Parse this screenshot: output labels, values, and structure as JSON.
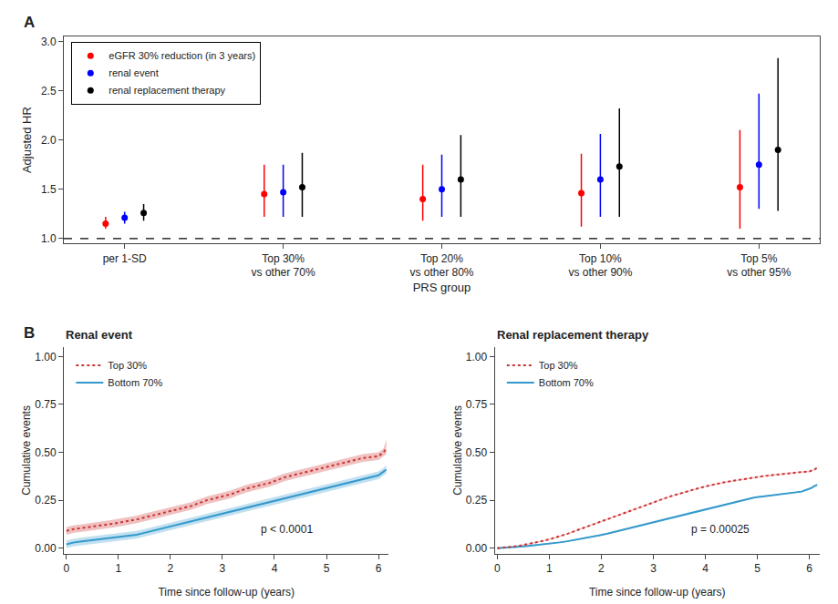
{
  "chart_data": [
    {
      "type": "scatter",
      "panel_label": "A",
      "xlabel": "PRS group",
      "ylabel": "Adjusted HR",
      "categories": [
        "per 1-SD",
        "Top 30%\nvs other 70%",
        "Top 20%\nvs other 80%",
        "Top 10%\nvs other 90%",
        "Top 5%\nvs other 95%"
      ],
      "series": [
        {
          "name": "eGFR 30% reduction (in 3 years)",
          "color": "#FF0000",
          "marker": "circle",
          "values": [
            1.15,
            1.45,
            1.4,
            1.46,
            1.52
          ],
          "ci_low": [
            1.1,
            1.22,
            1.18,
            1.12,
            1.1
          ],
          "ci_high": [
            1.22,
            1.75,
            1.75,
            1.86,
            2.1
          ]
        },
        {
          "name": "renal event",
          "color": "#0000FF",
          "marker": "circle",
          "values": [
            1.21,
            1.47,
            1.5,
            1.6,
            1.75
          ],
          "ci_low": [
            1.15,
            1.22,
            1.22,
            1.22,
            1.3
          ],
          "ci_high": [
            1.27,
            1.75,
            1.85,
            2.06,
            2.47
          ]
        },
        {
          "name": "renal replacement therapy",
          "color": "#000000",
          "marker": "circle",
          "values": [
            1.26,
            1.52,
            1.6,
            1.73,
            1.9
          ],
          "ci_low": [
            1.18,
            1.22,
            1.22,
            1.22,
            1.28
          ],
          "ci_high": [
            1.35,
            1.87,
            2.05,
            2.32,
            2.83
          ]
        }
      ],
      "reference_line": 1.0,
      "ylim": [
        0.95,
        3.05
      ],
      "yticks": [
        {
          "value": 1.0,
          "label": "1.0"
        },
        1.5,
        {
          "value": 2.0,
          "label": "2.0"
        },
        2.5,
        {
          "value": 3.0,
          "label": "3.0"
        }
      ],
      "legend": "upper left",
      "grid": false
    },
    {
      "type": "line",
      "panel_label": "B",
      "title": "Renal event",
      "xlabel": "Time since follow-up (years)",
      "ylabel": "Cumulative events",
      "annotations": [
        "p < 0.0001"
      ],
      "x": [
        0.0,
        0.15,
        0.3,
        0.45,
        0.6,
        0.75,
        0.9,
        1.05,
        1.2,
        1.35,
        1.5,
        1.65,
        1.8,
        1.95,
        2.1,
        2.25,
        2.4,
        2.55,
        2.7,
        2.85,
        3.0,
        3.15,
        3.3,
        3.45,
        3.6,
        3.75,
        3.9,
        4.05,
        4.2,
        4.35,
        4.5,
        4.65,
        4.8,
        4.95,
        5.1,
        5.25,
        5.4,
        5.55,
        5.7,
        5.85,
        6.0,
        6.05,
        6.1,
        6.15
      ],
      "series": [
        {
          "name": "Bottom 70%",
          "color": "#3399CC",
          "line_style": "solid",
          "values": [
            0.02,
            0.03,
            0.035,
            0.04,
            0.045,
            0.05,
            0.055,
            0.06,
            0.065,
            0.07,
            0.08,
            0.09,
            0.1,
            0.11,
            0.12,
            0.13,
            0.14,
            0.15,
            0.16,
            0.17,
            0.18,
            0.19,
            0.2,
            0.21,
            0.22,
            0.23,
            0.24,
            0.25,
            0.26,
            0.27,
            0.28,
            0.29,
            0.3,
            0.31,
            0.32,
            0.33,
            0.34,
            0.35,
            0.36,
            0.37,
            0.38,
            0.39,
            0.4,
            0.41
          ],
          "low": [
            0.0,
            0.01,
            0.015,
            0.02,
            0.025,
            0.03,
            0.035,
            0.04,
            0.045,
            0.05,
            0.06,
            0.07,
            0.08,
            0.09,
            0.1,
            0.11,
            0.12,
            0.13,
            0.14,
            0.15,
            0.16,
            0.17,
            0.18,
            0.19,
            0.2,
            0.21,
            0.22,
            0.23,
            0.24,
            0.25,
            0.26,
            0.27,
            0.28,
            0.29,
            0.3,
            0.31,
            0.32,
            0.33,
            0.34,
            0.35,
            0.36,
            0.37,
            0.38,
            0.39
          ],
          "high": [
            0.04,
            0.05,
            0.055,
            0.06,
            0.065,
            0.07,
            0.075,
            0.08,
            0.085,
            0.09,
            0.1,
            0.11,
            0.12,
            0.13,
            0.14,
            0.15,
            0.16,
            0.17,
            0.18,
            0.19,
            0.2,
            0.21,
            0.22,
            0.23,
            0.24,
            0.25,
            0.26,
            0.27,
            0.28,
            0.29,
            0.3,
            0.31,
            0.32,
            0.33,
            0.34,
            0.35,
            0.36,
            0.37,
            0.38,
            0.39,
            0.4,
            0.41,
            0.42,
            0.43
          ]
        },
        {
          "name": "Top 30%",
          "color": "#CC3333",
          "line_style": "dotted",
          "values": [
            0.09,
            0.1,
            0.105,
            0.11,
            0.115,
            0.12,
            0.128,
            0.135,
            0.142,
            0.15,
            0.16,
            0.17,
            0.18,
            0.19,
            0.2,
            0.21,
            0.22,
            0.235,
            0.25,
            0.26,
            0.27,
            0.28,
            0.295,
            0.31,
            0.32,
            0.33,
            0.34,
            0.355,
            0.37,
            0.38,
            0.39,
            0.4,
            0.41,
            0.42,
            0.43,
            0.44,
            0.45,
            0.46,
            0.47,
            0.475,
            0.48,
            0.49,
            0.5,
            0.52
          ],
          "low": [
            0.07,
            0.08,
            0.085,
            0.09,
            0.095,
            0.1,
            0.108,
            0.115,
            0.122,
            0.13,
            0.14,
            0.15,
            0.16,
            0.17,
            0.18,
            0.19,
            0.2,
            0.215,
            0.23,
            0.24,
            0.25,
            0.26,
            0.275,
            0.29,
            0.3,
            0.31,
            0.32,
            0.335,
            0.35,
            0.36,
            0.37,
            0.38,
            0.39,
            0.4,
            0.41,
            0.42,
            0.43,
            0.44,
            0.45,
            0.455,
            0.46,
            0.47,
            0.48,
            0.49
          ],
          "high": [
            0.11,
            0.12,
            0.125,
            0.13,
            0.135,
            0.14,
            0.148,
            0.155,
            0.162,
            0.17,
            0.18,
            0.19,
            0.2,
            0.21,
            0.22,
            0.23,
            0.24,
            0.255,
            0.27,
            0.28,
            0.29,
            0.3,
            0.315,
            0.33,
            0.34,
            0.35,
            0.36,
            0.375,
            0.39,
            0.4,
            0.41,
            0.42,
            0.43,
            0.44,
            0.45,
            0.46,
            0.47,
            0.48,
            0.49,
            0.495,
            0.5,
            0.51,
            0.52,
            0.57
          ]
        }
      ],
      "xlim": [
        -0.05,
        6.2
      ],
      "xticks": [
        0,
        1,
        2,
        3,
        4,
        5,
        6
      ],
      "ylim": [
        -0.03,
        1.05
      ],
      "yticks": [
        {
          "value": 0.0,
          "label": "0.00"
        },
        0.25,
        {
          "value": 0.5,
          "label": "0.50"
        },
        0.75,
        {
          "value": 1.0,
          "label": "1.00"
        }
      ],
      "legend": "upper left",
      "grid": false
    },
    {
      "type": "line",
      "title": "Renal replacement therapy",
      "xlabel": "Time since follow-up (years)",
      "ylabel": "Cumulative events",
      "annotations": [
        "p = 0.00025"
      ],
      "x": [
        0.0,
        0.15,
        0.3,
        0.45,
        0.6,
        0.75,
        0.9,
        1.05,
        1.2,
        1.35,
        1.5,
        1.65,
        1.8,
        1.95,
        2.1,
        2.25,
        2.4,
        2.55,
        2.7,
        2.85,
        3.0,
        3.15,
        3.3,
        3.45,
        3.6,
        3.75,
        3.9,
        4.05,
        4.2,
        4.35,
        4.5,
        4.65,
        4.8,
        4.95,
        5.1,
        5.25,
        5.4,
        5.55,
        5.7,
        5.85,
        6.0,
        6.05,
        6.1,
        6.15
      ],
      "series": [
        {
          "name": "Bottom 70%",
          "color": "#3399CC",
          "line_style": "solid",
          "values": [
            0.0,
            0.002,
            0.005,
            0.008,
            0.012,
            0.016,
            0.02,
            0.025,
            0.03,
            0.036,
            0.043,
            0.05,
            0.058,
            0.066,
            0.075,
            0.085,
            0.095,
            0.105,
            0.115,
            0.125,
            0.135,
            0.145,
            0.155,
            0.165,
            0.175,
            0.185,
            0.195,
            0.205,
            0.215,
            0.225,
            0.235,
            0.245,
            0.255,
            0.265,
            0.27,
            0.275,
            0.28,
            0.285,
            0.29,
            0.295,
            0.31,
            0.315,
            0.325,
            0.33
          ],
          "low": [
            0.0,
            0.0,
            0.003,
            0.006,
            0.009,
            0.013,
            0.017,
            0.022,
            0.027,
            0.033,
            0.04,
            0.047,
            0.055,
            0.063,
            0.072,
            0.082,
            0.092,
            0.102,
            0.112,
            0.122,
            0.132,
            0.142,
            0.152,
            0.162,
            0.172,
            0.182,
            0.192,
            0.202,
            0.212,
            0.222,
            0.232,
            0.242,
            0.252,
            0.262,
            0.267,
            0.272,
            0.277,
            0.282,
            0.287,
            0.292,
            0.307,
            0.312,
            0.322,
            0.327
          ],
          "high": [
            0.0,
            0.004,
            0.007,
            0.01,
            0.015,
            0.019,
            0.023,
            0.028,
            0.033,
            0.039,
            0.046,
            0.053,
            0.061,
            0.069,
            0.078,
            0.088,
            0.098,
            0.108,
            0.118,
            0.128,
            0.138,
            0.148,
            0.158,
            0.168,
            0.178,
            0.188,
            0.198,
            0.208,
            0.218,
            0.228,
            0.238,
            0.248,
            0.258,
            0.268,
            0.273,
            0.278,
            0.283,
            0.288,
            0.293,
            0.298,
            0.313,
            0.318,
            0.328,
            0.333
          ]
        },
        {
          "name": "Top 30%",
          "color": "#CC3333",
          "line_style": "dotted",
          "values": [
            0.0,
            0.003,
            0.008,
            0.014,
            0.022,
            0.03,
            0.039,
            0.05,
            0.062,
            0.075,
            0.09,
            0.105,
            0.12,
            0.135,
            0.15,
            0.165,
            0.18,
            0.195,
            0.21,
            0.225,
            0.24,
            0.255,
            0.268,
            0.28,
            0.292,
            0.305,
            0.315,
            0.325,
            0.335,
            0.343,
            0.35,
            0.357,
            0.363,
            0.37,
            0.375,
            0.38,
            0.385,
            0.39,
            0.394,
            0.397,
            0.4,
            0.405,
            0.41,
            0.42
          ],
          "low": [
            0.0,
            0.001,
            0.006,
            0.011,
            0.019,
            0.027,
            0.036,
            0.047,
            0.059,
            0.072,
            0.087,
            0.102,
            0.117,
            0.132,
            0.147,
            0.162,
            0.177,
            0.192,
            0.207,
            0.222,
            0.237,
            0.252,
            0.265,
            0.277,
            0.289,
            0.302,
            0.312,
            0.322,
            0.332,
            0.34,
            0.347,
            0.354,
            0.36,
            0.367,
            0.372,
            0.377,
            0.382,
            0.387,
            0.391,
            0.394,
            0.397,
            0.402,
            0.407,
            0.417
          ],
          "high": [
            0.0,
            0.005,
            0.01,
            0.017,
            0.025,
            0.033,
            0.042,
            0.053,
            0.065,
            0.078,
            0.093,
            0.108,
            0.123,
            0.138,
            0.153,
            0.168,
            0.183,
            0.198,
            0.213,
            0.228,
            0.243,
            0.258,
            0.271,
            0.283,
            0.295,
            0.308,
            0.318,
            0.328,
            0.338,
            0.346,
            0.353,
            0.36,
            0.366,
            0.373,
            0.378,
            0.383,
            0.388,
            0.393,
            0.397,
            0.4,
            0.403,
            0.408,
            0.413,
            0.423
          ]
        }
      ],
      "xlim": [
        -0.05,
        6.2
      ],
      "xticks": [
        0,
        1,
        2,
        3,
        4,
        5,
        6
      ],
      "ylim": [
        -0.03,
        1.05
      ],
      "yticks": [
        {
          "value": 0.0,
          "label": "0.00"
        },
        0.25,
        {
          "value": 0.5,
          "label": "0.50"
        },
        0.75,
        {
          "value": 1.0,
          "label": "1.00"
        }
      ],
      "legend": "upper left",
      "grid": false
    }
  ]
}
